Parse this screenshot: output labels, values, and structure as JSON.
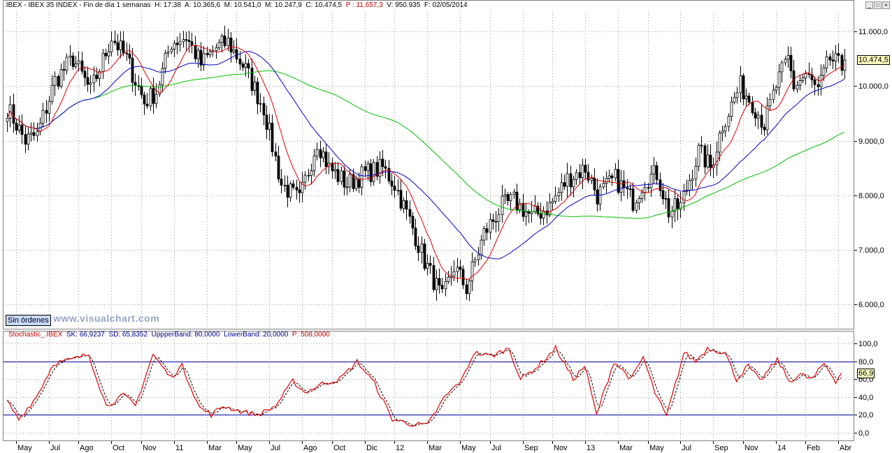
{
  "header": {
    "symbol": ".IBEX - IBEX 35 INDEX - Fin de día 1 semanas",
    "hour": "H: 17:38",
    "open": "A: 10.365,6",
    "high": "M: 10.541,0",
    "low": "M: 10.247,9",
    "close": "C: 10.474,5",
    "p": "P : 11.657,3",
    "volume": "V: 950.935",
    "date": "F: 02/05/2014"
  },
  "window_buttons": [
    "_",
    "□",
    "×"
  ],
  "colors": {
    "candle_up": "#ffffff",
    "candle_down": "#000000",
    "ma_short": "#e00000",
    "ma_mid": "#0000c8",
    "ma_long": "#00c000",
    "stoch_k": "#e00000",
    "stoch_d": "#000000",
    "bands": "#0000a0"
  },
  "price_axis": {
    "labels": [
      "11.000,0",
      "10.000,0",
      "9.000,0",
      "8.000,0",
      "7.000,0",
      "6.000,0"
    ],
    "last_value": "10.474,5"
  },
  "stoch_axis": {
    "labels": [
      "100,0",
      "80,0",
      "60,0",
      "40,0",
      "20,0",
      "0,0"
    ],
    "last_value": "66,9"
  },
  "x_labels": [
    "May",
    "Jul",
    "Ago",
    "Oct",
    "Nov",
    "11",
    "Mar",
    "May",
    "Jul",
    "Ago",
    "Oct",
    "Dic",
    "12",
    "Mar",
    "May",
    "Jul",
    "Sep",
    "Nov",
    "13",
    "Mar",
    "May",
    "Jul",
    "Sep",
    "Nov",
    "14",
    "Feb",
    "Abr"
  ],
  "sin_ordenes": "Sin órdenes",
  "watermark": "www.visualchart.com",
  "stochastic_header": {
    "name": "Stochastic_.IBEX",
    "sk": "SK: 66,9237",
    "sd": "SD: 65,8352",
    "upper": "UppperBand: 80,0000",
    "lower": "LowerBand: 20,0000",
    "p": "P: 508,0000"
  },
  "chart_data": [
    {
      "type": "candlestick",
      "title": ".IBEX - IBEX 35 INDEX",
      "ylim": [
        5570,
        11370
      ],
      "anchors": [
        [
          0,
          9600
        ],
        [
          6,
          9000
        ],
        [
          10,
          9100
        ],
        [
          16,
          10100
        ],
        [
          22,
          10500
        ],
        [
          28,
          9900
        ],
        [
          35,
          10900
        ],
        [
          40,
          10500
        ],
        [
          46,
          9700
        ],
        [
          50,
          9900
        ],
        [
          55,
          10800
        ],
        [
          60,
          10900
        ],
        [
          65,
          10400
        ],
        [
          70,
          10700
        ],
        [
          74,
          10800
        ],
        [
          80,
          10300
        ],
        [
          86,
          9600
        ],
        [
          92,
          8200
        ],
        [
          98,
          7900
        ],
        [
          104,
          9000
        ],
        [
          108,
          8500
        ],
        [
          114,
          8200
        ],
        [
          120,
          8400
        ],
        [
          126,
          8500
        ],
        [
          130,
          8200
        ],
        [
          136,
          7400
        ],
        [
          140,
          6800
        ],
        [
          146,
          6100
        ],
        [
          150,
          6700
        ],
        [
          154,
          6300
        ],
        [
          160,
          7300
        ],
        [
          166,
          7800
        ],
        [
          170,
          7900
        ],
        [
          176,
          7600
        ],
        [
          182,
          7800
        ],
        [
          188,
          8300
        ],
        [
          194,
          8500
        ],
        [
          198,
          8000
        ],
        [
          204,
          8300
        ],
        [
          210,
          7900
        ],
        [
          214,
          8300
        ],
        [
          218,
          8400
        ],
        [
          222,
          7700
        ],
        [
          226,
          7800
        ],
        [
          232,
          8800
        ],
        [
          236,
          8500
        ],
        [
          240,
          9300
        ],
        [
          246,
          10000
        ],
        [
          250,
          9700
        ],
        [
          254,
          9300
        ],
        [
          258,
          10000
        ],
        [
          262,
          10500
        ],
        [
          264,
          10000
        ],
        [
          268,
          10200
        ],
        [
          272,
          9900
        ],
        [
          276,
          10500
        ],
        [
          281,
          10300
        ]
      ],
      "moving_averages": {
        "ma_short_period": 10,
        "ma_mid_period": 30,
        "ma_long_period": 80
      }
    },
    {
      "type": "line",
      "title": "Stochastic_.IBEX",
      "ylim": [
        -8,
        105
      ],
      "bands": [
        80,
        20
      ],
      "anchors": [
        [
          0,
          35
        ],
        [
          4,
          15
        ],
        [
          10,
          40
        ],
        [
          16,
          78
        ],
        [
          22,
          82
        ],
        [
          28,
          88
        ],
        [
          34,
          30
        ],
        [
          40,
          42
        ],
        [
          44,
          30
        ],
        [
          50,
          88
        ],
        [
          56,
          62
        ],
        [
          60,
          75
        ],
        [
          66,
          28
        ],
        [
          70,
          20
        ],
        [
          74,
          30
        ],
        [
          80,
          24
        ],
        [
          86,
          20
        ],
        [
          92,
          30
        ],
        [
          98,
          58
        ],
        [
          102,
          45
        ],
        [
          108,
          55
        ],
        [
          114,
          60
        ],
        [
          120,
          80
        ],
        [
          126,
          55
        ],
        [
          132,
          15
        ],
        [
          138,
          10
        ],
        [
          144,
          8
        ],
        [
          150,
          40
        ],
        [
          156,
          60
        ],
        [
          160,
          90
        ],
        [
          166,
          86
        ],
        [
          172,
          95
        ],
        [
          176,
          60
        ],
        [
          182,
          75
        ],
        [
          188,
          95
        ],
        [
          194,
          60
        ],
        [
          198,
          75
        ],
        [
          202,
          20
        ],
        [
          208,
          80
        ],
        [
          214,
          60
        ],
        [
          218,
          85
        ],
        [
          222,
          45
        ],
        [
          226,
          18
        ],
        [
          232,
          90
        ],
        [
          236,
          80
        ],
        [
          240,
          95
        ],
        [
          246,
          90
        ],
        [
          250,
          60
        ],
        [
          254,
          75
        ],
        [
          258,
          58
        ],
        [
          264,
          82
        ],
        [
          268,
          58
        ],
        [
          272,
          65
        ],
        [
          276,
          60
        ],
        [
          280,
          78
        ],
        [
          284,
          58
        ],
        [
          286,
          66.9
        ]
      ]
    }
  ]
}
